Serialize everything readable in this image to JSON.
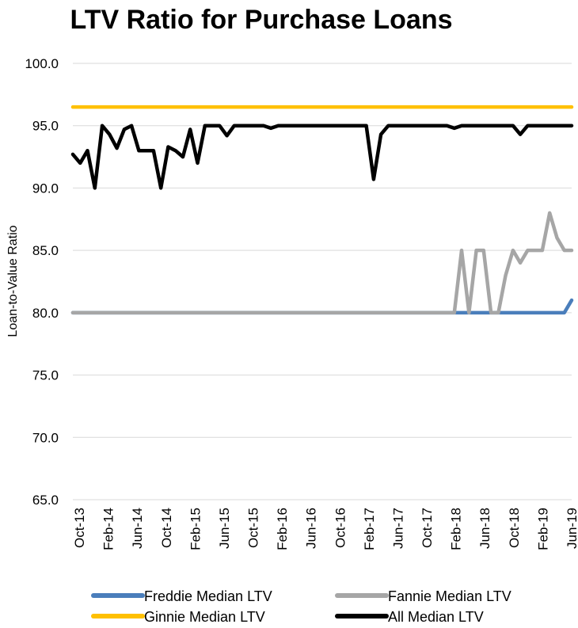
{
  "chart_data": {
    "type": "line",
    "title": "LTV Ratio for Purchase Loans",
    "xlabel": "",
    "ylabel": "Loan-to-Value Ratio",
    "ylim": [
      65,
      100
    ],
    "yticks": [
      "100.0",
      "95.0",
      "90.0",
      "85.0",
      "80.0",
      "75.0",
      "70.0",
      "65.0"
    ],
    "ytick_values": [
      100,
      95,
      90,
      85,
      80,
      75,
      70,
      65
    ],
    "grid": true,
    "legend_position": "bottom",
    "x_start": "Oct-13",
    "x_end": "Jun-19",
    "xtick_labels": [
      "Oct-13",
      "Feb-14",
      "Jun-14",
      "Oct-14",
      "Feb-15",
      "Jun-15",
      "Oct-15",
      "Feb-16",
      "Jun-16",
      "Oct-16",
      "Feb-17",
      "Jun-17",
      "Oct-17",
      "Feb-18",
      "Jun-18",
      "Oct-18",
      "Feb-19",
      "Jun-19"
    ],
    "series": [
      {
        "name": "Freddie Median LTV",
        "color": "#4a7ebb",
        "values": [
          80,
          80,
          80,
          80,
          80,
          80,
          80,
          80,
          80,
          80,
          80,
          80,
          80,
          80,
          80,
          80,
          80,
          80,
          80,
          80,
          80,
          80,
          80,
          80,
          80,
          80,
          80,
          80,
          80,
          80,
          80,
          80,
          80,
          80,
          80,
          80,
          80,
          80,
          80,
          80,
          80,
          80,
          80,
          80,
          80,
          80,
          80,
          80,
          80,
          80,
          80,
          80,
          80,
          80,
          80,
          80,
          80,
          80,
          80,
          80,
          80,
          80,
          80,
          80,
          80,
          80,
          80,
          80,
          81
        ]
      },
      {
        "name": "Fannie Median LTV",
        "color": "#a6a6a6",
        "values": [
          80,
          80,
          80,
          80,
          80,
          80,
          80,
          80,
          80,
          80,
          80,
          80,
          80,
          80,
          80,
          80,
          80,
          80,
          80,
          80,
          80,
          80,
          80,
          80,
          80,
          80,
          80,
          80,
          80,
          80,
          80,
          80,
          80,
          80,
          80,
          80,
          80,
          80,
          80,
          80,
          80,
          80,
          80,
          80,
          80,
          80,
          80,
          80,
          80,
          80,
          80,
          80,
          80,
          85,
          80,
          85,
          85,
          80,
          80,
          83,
          85,
          84,
          85,
          85,
          85,
          88,
          86,
          85,
          85
        ]
      },
      {
        "name": "Ginnie Median LTV",
        "color": "#ffc000",
        "values": [
          96.5,
          96.5,
          96.5,
          96.5,
          96.5,
          96.5,
          96.5,
          96.5,
          96.5,
          96.5,
          96.5,
          96.5,
          96.5,
          96.5,
          96.5,
          96.5,
          96.5,
          96.5,
          96.5,
          96.5,
          96.5,
          96.5,
          96.5,
          96.5,
          96.5,
          96.5,
          96.5,
          96.5,
          96.5,
          96.5,
          96.5,
          96.5,
          96.5,
          96.5,
          96.5,
          96.5,
          96.5,
          96.5,
          96.5,
          96.5,
          96.5,
          96.5,
          96.5,
          96.5,
          96.5,
          96.5,
          96.5,
          96.5,
          96.5,
          96.5,
          96.5,
          96.5,
          96.5,
          96.5,
          96.5,
          96.5,
          96.5,
          96.5,
          96.5,
          96.5,
          96.5,
          96.5,
          96.5,
          96.5,
          96.5,
          96.5,
          96.5,
          96.5,
          96.5
        ]
      },
      {
        "name": "All Median LTV",
        "color": "#000000",
        "values": [
          92.7,
          92,
          93,
          90,
          95,
          94.3,
          93.2,
          94.7,
          95,
          93,
          93,
          93,
          90,
          93.3,
          93,
          92.5,
          94.7,
          92,
          95,
          95,
          95,
          94.2,
          95,
          95,
          95,
          95,
          95,
          94.8,
          95,
          95,
          95,
          95,
          95,
          95,
          95,
          95,
          95,
          95,
          95,
          95,
          95,
          90.7,
          94.3,
          95,
          95,
          95,
          95,
          95,
          95,
          95,
          95,
          95,
          94.8,
          95,
          95,
          95,
          95,
          95,
          95,
          95,
          95,
          94.3,
          95,
          95,
          95,
          95,
          95,
          95,
          95
        ]
      }
    ]
  }
}
